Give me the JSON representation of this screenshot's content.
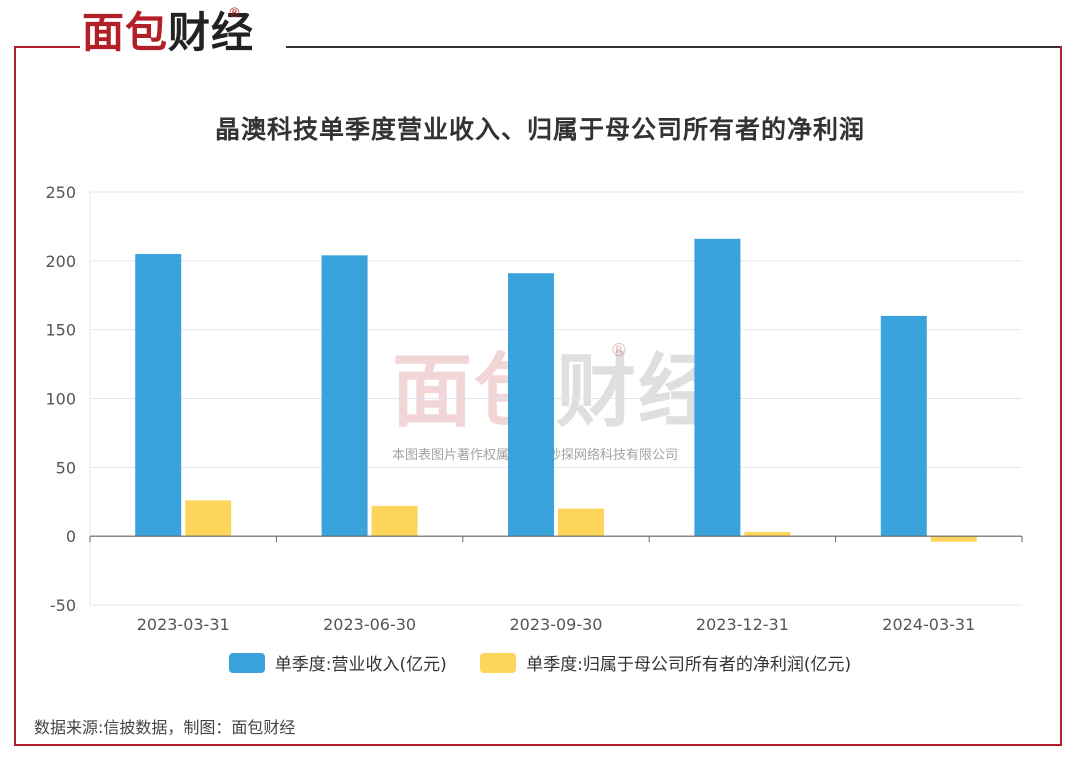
{
  "brand": {
    "logo_red": "面包",
    "logo_dark": "财经",
    "reg": "®"
  },
  "watermark": {
    "logo_red": "面包",
    "logo_dark": "财经",
    "reg": "®",
    "text": "本图表图片著作权属于上海妙探网络科技有限公司"
  },
  "source": "数据来源:信披数据，制图：面包财经",
  "colors": {
    "revenue": "#3ba3dc",
    "profit": "#fdd55a",
    "frame": "#b31f27",
    "grid": "#e4e4ee"
  },
  "chart_data": {
    "type": "bar",
    "title": "晶澳科技单季度营业收入、归属于母公司所有者的净利润",
    "categories": [
      "2023-03-31",
      "2023-06-30",
      "2023-09-30",
      "2023-12-31",
      "2024-03-31"
    ],
    "series": [
      {
        "name": "单季度:营业收入(亿元)",
        "values": [
          205,
          204,
          191,
          216,
          160
        ]
      },
      {
        "name": "单季度:归属于母公司所有者的净利润(亿元)",
        "values": [
          26,
          22,
          20,
          3,
          -4
        ]
      }
    ],
    "ylim": [
      -50,
      250
    ],
    "yticks": [
      -50,
      0,
      50,
      100,
      150,
      200,
      250
    ],
    "grid": true,
    "legend_position": "bottom"
  }
}
